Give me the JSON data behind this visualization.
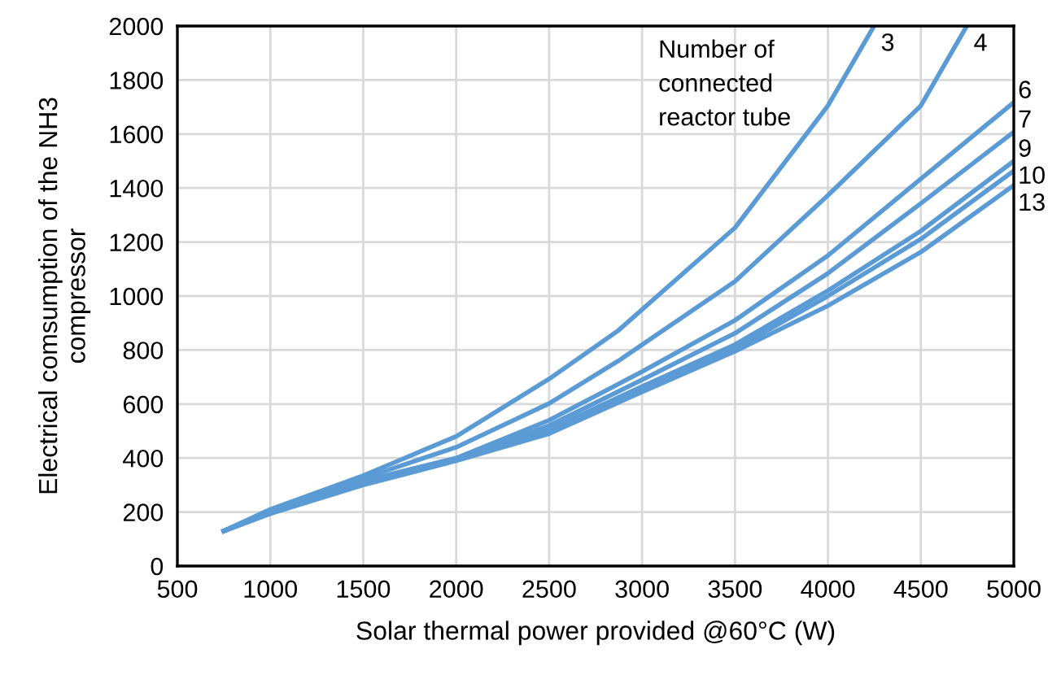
{
  "chart_data": {
    "type": "line",
    "xlabel": "Solar thermal power provided @60°C (W)",
    "ylabel": "Electrical comsumption of the NH3\ncompressor",
    "xlim": [
      500,
      5000
    ],
    "ylim": [
      0,
      2000
    ],
    "xticks": [
      500,
      1000,
      1500,
      2000,
      2500,
      3000,
      3500,
      4000,
      4500,
      5000
    ],
    "yticks": [
      0,
      200,
      400,
      600,
      800,
      1000,
      1200,
      1400,
      1600,
      1800,
      2000
    ],
    "grid": true,
    "marker": "none",
    "line_style": "solid",
    "annotations": [
      "Number of\nconnected\nreactor tube"
    ],
    "series": [
      {
        "name": "3",
        "color": "#5b9bd5",
        "x": [
          750,
          1000,
          1500,
          2000,
          2500,
          2873,
          3500,
          4000,
          4248
        ],
        "values": [
          130,
          210,
          335,
          480,
          693,
          873,
          1253,
          1705,
          2000
        ]
      },
      {
        "name": "4",
        "color": "#5b9bd5",
        "x": [
          750,
          1000,
          1500,
          2000,
          2500,
          2873,
          3500,
          4000,
          4500,
          4747
        ],
        "values": [
          130,
          205,
          325,
          440,
          602,
          760,
          1054,
          1373,
          1705,
          2000
        ]
      },
      {
        "name": "6",
        "color": "#5b9bd5",
        "x": [
          750,
          1000,
          1500,
          2000,
          2500,
          3000,
          3500,
          4000,
          4500,
          5000
        ],
        "values": [
          130,
          200,
          315,
          400,
          540,
          720,
          910,
          1150,
          1434,
          1717
        ]
      },
      {
        "name": "7",
        "color": "#5b9bd5",
        "x": [
          750,
          1000,
          1500,
          2000,
          2500,
          3000,
          3500,
          4000,
          4500,
          5000
        ],
        "values": [
          130,
          198,
          310,
          397,
          520,
          690,
          862,
          1084,
          1343,
          1608
        ]
      },
      {
        "name": "9",
        "color": "#5b9bd5",
        "x": [
          750,
          1000,
          1500,
          2000,
          2500,
          3000,
          3500,
          4000,
          4500,
          5000
        ],
        "values": [
          130,
          196,
          305,
          394,
          505,
          665,
          820,
          1020,
          1241,
          1500
        ]
      },
      {
        "name": "10",
        "color": "#5b9bd5",
        "x": [
          750,
          1000,
          1500,
          2000,
          2500,
          3000,
          3500,
          4000,
          4500,
          5000
        ],
        "values": [
          130,
          195,
          303,
          392,
          495,
          655,
          805,
          1000,
          1211,
          1464
        ]
      },
      {
        "name": "13",
        "color": "#5b9bd5",
        "x": [
          750,
          1000,
          1500,
          2000,
          2500,
          3000,
          3500,
          4000,
          4500,
          5000
        ],
        "values": [
          130,
          194,
          300,
          390,
          490,
          645,
          795,
          964,
          1163,
          1410
        ]
      }
    ]
  }
}
